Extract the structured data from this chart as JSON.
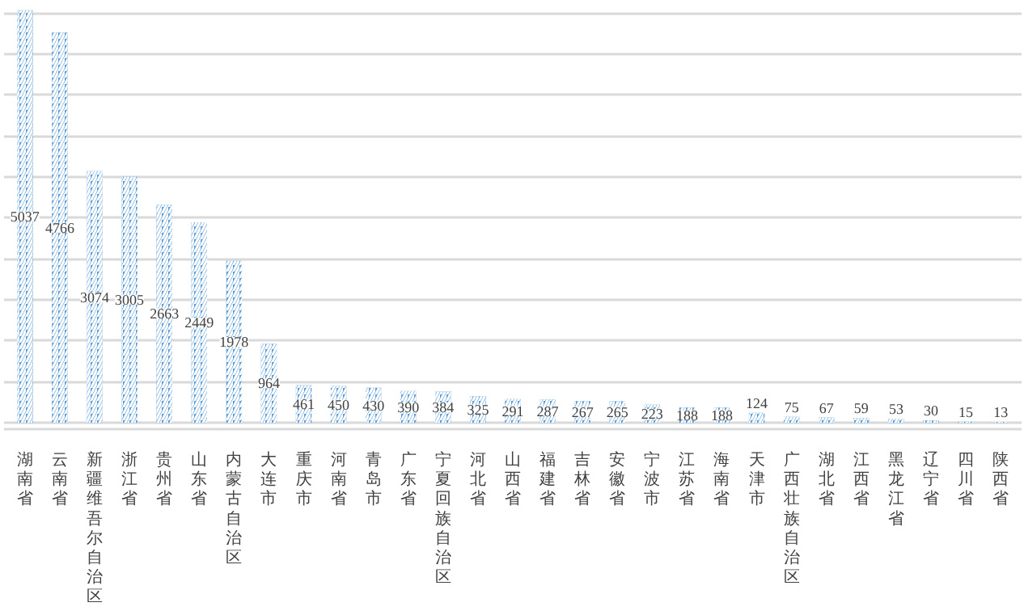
{
  "chart_data": {
    "type": "bar",
    "categories": [
      "湖南省",
      "云南省",
      "新疆维吾尔自治区",
      "浙江省",
      "贵州省",
      "山东省",
      "内蒙古自治区",
      "大连市",
      "重庆市",
      "河南省",
      "青岛市",
      "广东省",
      "宁夏回族自治区",
      "河北省",
      "山西省",
      "福建省",
      "吉林省",
      "安徽省",
      "宁波市",
      "江苏省",
      "海南省",
      "天津市",
      "广西壮族自治区",
      "湖北省",
      "江西省",
      "黑龙江省",
      "辽宁省",
      "四川省",
      "陕西省"
    ],
    "values": [
      5037,
      4766,
      3074,
      3005,
      2663,
      2449,
      1978,
      964,
      461,
      450,
      430,
      390,
      384,
      325,
      291,
      287,
      267,
      265,
      223,
      188,
      188,
      124,
      75,
      67,
      59,
      53,
      30,
      15,
      13
    ],
    "color": "#5b9bd5",
    "data_labels": true,
    "grid": "y",
    "tick_labels": "x",
    "yticks": [
      {
        "value": 0,
        "label": null
      },
      {
        "value": 500,
        "label": null
      },
      {
        "value": 1000,
        "label": null
      },
      {
        "value": 1500,
        "label": null
      },
      {
        "value": 2000,
        "label": null
      },
      {
        "value": 2500,
        "label": null
      },
      {
        "value": 3000,
        "label": null
      },
      {
        "value": 3500,
        "label": null
      },
      {
        "value": 4000,
        "label": null
      },
      {
        "value": 4500,
        "label": null
      },
      {
        "value": 5000,
        "label": null
      }
    ]
  }
}
